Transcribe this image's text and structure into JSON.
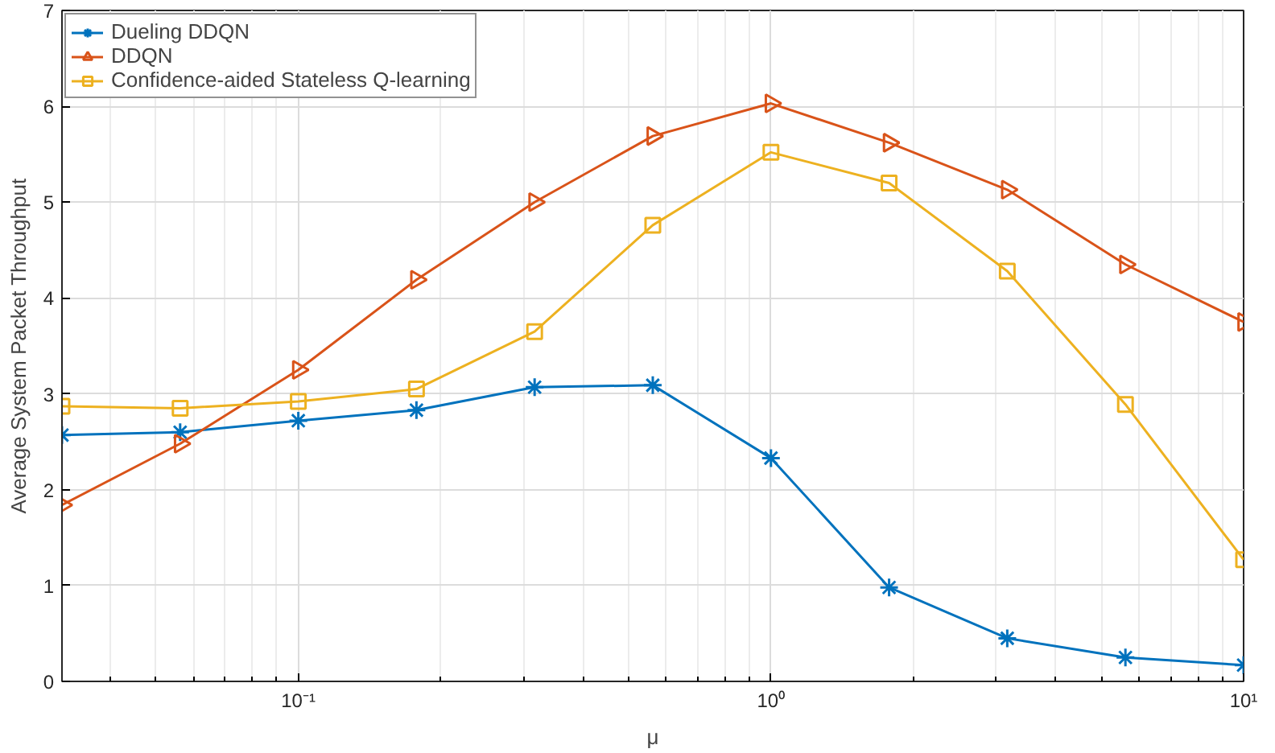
{
  "chart_data": {
    "type": "line",
    "xlabel": "μ",
    "ylabel": "Average System Packet Throughput",
    "x": [
      0.03162,
      0.05623,
      0.1,
      0.1778,
      0.3162,
      0.5623,
      1,
      1.778,
      3.162,
      5.623,
      10
    ],
    "series": [
      {
        "name": "Dueling DDQN",
        "color": "#0072bd",
        "marker": "cross",
        "values": [
          2.57,
          2.6,
          2.72,
          2.83,
          3.07,
          3.09,
          2.33,
          0.98,
          0.45,
          0.25,
          0.17
        ]
      },
      {
        "name": "DDQN",
        "color": "#d95319",
        "marker": "triangle",
        "values": [
          1.84,
          2.48,
          3.25,
          4.19,
          5.0,
          5.69,
          6.03,
          5.62,
          5.13,
          4.35,
          3.75
        ]
      },
      {
        "name": "Confidence-aided Stateless Q-learning",
        "color": "#edb120",
        "marker": "square",
        "values": [
          2.87,
          2.85,
          2.92,
          3.05,
          3.65,
          4.76,
          5.52,
          5.2,
          4.28,
          2.89,
          1.27
        ]
      }
    ],
    "xlim": [
      0.03162,
      10
    ],
    "xticks": [
      {
        "value": 0.1,
        "label": "10⁻¹"
      },
      {
        "value": 1,
        "label": "10⁰"
      },
      {
        "value": 10,
        "label": "10¹"
      }
    ],
    "ylim": [
      0,
      7
    ],
    "yticks": [
      0,
      1,
      2,
      3,
      4,
      5,
      6,
      7
    ],
    "log": "x",
    "grid": true,
    "legend": "top left",
    "line_style": "solid"
  }
}
